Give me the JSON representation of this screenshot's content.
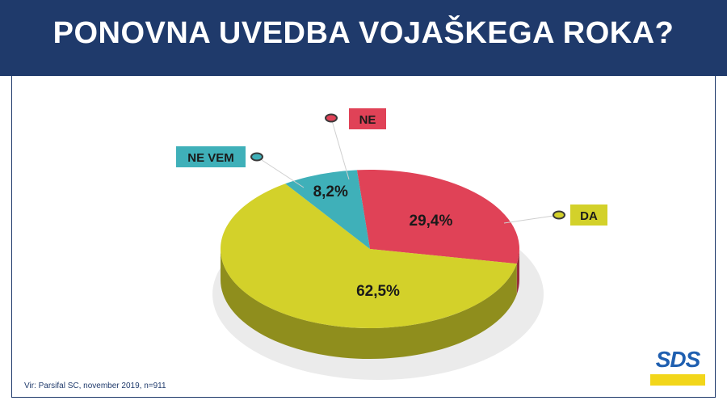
{
  "header": {
    "title": "PONOVNA UVEDBA VOJAŠKEGA ROKA?"
  },
  "footer": {
    "source": "Vir: Parsifal SC, november 2019, n=911"
  },
  "logo": {
    "text": "SDS",
    "colors": {
      "text": "#1f5fb0",
      "bar": "#f2d61a"
    }
  },
  "colors": {
    "header_bg": "#1f3a6b"
  },
  "chart_data": {
    "type": "pie",
    "style": "3d",
    "title": "PONOVNA UVEDBA VOJAŠKEGA ROKA?",
    "slices": [
      {
        "label": "NE",
        "value": 29.4,
        "value_label": "29,4%",
        "color": "#e04257"
      },
      {
        "label": "DA",
        "value": 62.5,
        "value_label": "62,5%",
        "color": "#d3d12a"
      },
      {
        "label": "NE VEM",
        "value": 8.2,
        "value_label": "8,2%",
        "color": "#3fb0b9"
      }
    ],
    "legend": "callouts around pie"
  }
}
